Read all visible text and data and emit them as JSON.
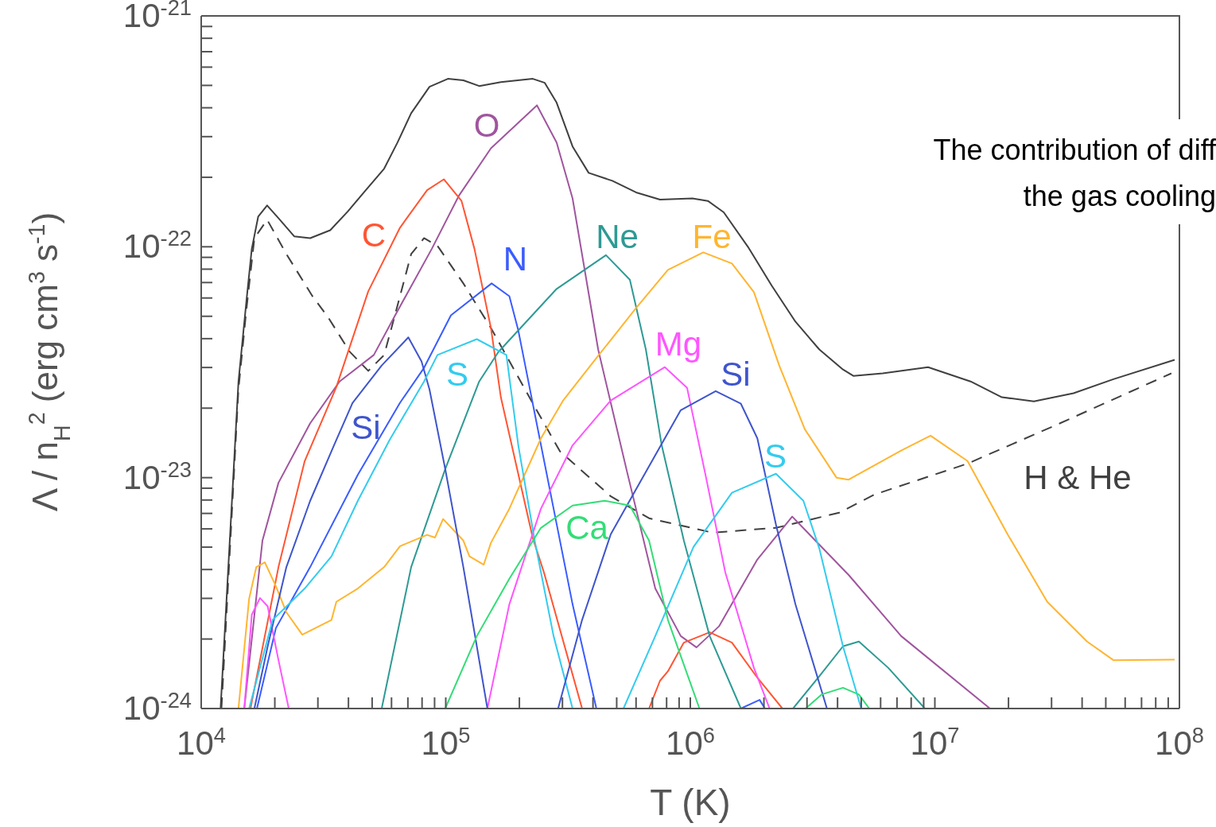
{
  "chart_data": {
    "type": "line",
    "xlabel": "T (K)",
    "ylabel": "Λ / n$_{H}$$^{2}$ (erg cm$^{3}$ s$^{-1}$)",
    "log": "xy",
    "xlim": [
      10000.0,
      100000000.0
    ],
    "ylim": [
      1e-24,
      1e-21
    ],
    "xticks": [
      {
        "value": 10000.0,
        "label": "10$^{4}$"
      },
      {
        "value": 20000.0,
        "label": null
      },
      {
        "value": 30000.0,
        "label": null
      },
      {
        "value": 40000.0,
        "label": null
      },
      {
        "value": 50000.0,
        "label": null
      },
      {
        "value": 60000.0,
        "label": null
      },
      {
        "value": 70000.0,
        "label": null
      },
      {
        "value": 80000.0,
        "label": null
      },
      {
        "value": 90000.0,
        "label": null
      },
      {
        "value": 100000.0,
        "label": "10$^{5}$"
      },
      {
        "value": 200000.0,
        "label": null
      },
      {
        "value": 300000.0,
        "label": null
      },
      {
        "value": 400000.0,
        "label": null
      },
      {
        "value": 500000.0,
        "label": null
      },
      {
        "value": 600000.0,
        "label": null
      },
      {
        "value": 700000.0,
        "label": null
      },
      {
        "value": 800000.0,
        "label": null
      },
      {
        "value": 900000.0,
        "label": null
      },
      {
        "value": 1000000.0,
        "label": "10$^{6}$"
      },
      {
        "value": 2000000.0,
        "label": null
      },
      {
        "value": 3000000.0,
        "label": null
      },
      {
        "value": 4000000.0,
        "label": null
      },
      {
        "value": 5000000.0,
        "label": null
      },
      {
        "value": 6000000.0,
        "label": null
      },
      {
        "value": 7000000.0,
        "label": null
      },
      {
        "value": 8000000.0,
        "label": null
      },
      {
        "value": 9000000.0,
        "label": null
      },
      {
        "value": 10000000.0,
        "label": "10$^{7}$"
      },
      {
        "value": 20000000.0,
        "label": null
      },
      {
        "value": 30000000.0,
        "label": null
      },
      {
        "value": 40000000.0,
        "label": null
      },
      {
        "value": 50000000.0,
        "label": null
      },
      {
        "value": 60000000.0,
        "label": null
      },
      {
        "value": 70000000.0,
        "label": null
      },
      {
        "value": 80000000.0,
        "label": null
      },
      {
        "value": 90000000.0,
        "label": null
      },
      {
        "value": 100000000.0,
        "label": "10$^{8}$"
      }
    ],
    "yticks": [
      {
        "value": 1e-24,
        "label": "10$^{-24}$"
      },
      {
        "value": 2e-24,
        "label": null
      },
      {
        "value": 3e-24,
        "label": null
      },
      {
        "value": 4e-24,
        "label": null
      },
      {
        "value": 5e-24,
        "label": null
      },
      {
        "value": 6e-24,
        "label": null
      },
      {
        "value": 7e-24,
        "label": null
      },
      {
        "value": 8e-24,
        "label": null
      },
      {
        "value": 9e-24,
        "label": null
      },
      {
        "value": 1e-23,
        "label": "10$^{-23}$"
      },
      {
        "value": 2e-23,
        "label": null
      },
      {
        "value": 3e-23,
        "label": null
      },
      {
        "value": 4e-23,
        "label": null
      },
      {
        "value": 5e-23,
        "label": null
      },
      {
        "value": 6e-23,
        "label": null
      },
      {
        "value": 7e-23,
        "label": null
      },
      {
        "value": 8e-23,
        "label": null
      },
      {
        "value": 9e-23,
        "label": null
      },
      {
        "value": 1e-22,
        "label": "10$^{-22}$"
      },
      {
        "value": 2e-22,
        "label": null
      },
      {
        "value": 3e-22,
        "label": null
      },
      {
        "value": 4e-22,
        "label": null
      },
      {
        "value": 5e-22,
        "label": null
      },
      {
        "value": 6e-22,
        "label": null
      },
      {
        "value": 7e-22,
        "label": null
      },
      {
        "value": 8e-22,
        "label": null
      },
      {
        "value": 9e-22,
        "label": null
      },
      {
        "value": 1e-21,
        "label": "10$^{-21}$"
      }
    ],
    "annotations": [
      "The contribution of diff",
      "the gas cooling"
    ],
    "series": [
      {
        "color": "#404040",
        "x": [
          12000.0,
          13200.0,
          14200.0,
          15300.0,
          16100.0,
          17100.0,
          18600.0,
          20700.0,
          24000.0,
          27900.0,
          33700.0,
          39700.0,
          47100.0,
          56000.0,
          63500.0,
          72200.0,
          85800.0,
          102000.0,
          118000.0,
          137000.0,
          168000.0,
          227000.0,
          254000.0,
          284000.0,
          330000.0,
          384000.0,
          480000.0,
          600000.0,
          752000.0,
          1020000.0,
          1180000.0,
          1370000.0,
          1720000.0,
          2150000.0,
          2690000.0,
          3370000.0,
          4210000.0,
          4640000.0,
          6120000.0,
          9380000.0,
          14000000.0,
          18800000.0,
          25400000.0,
          36900000.0,
          53700000.0,
          95600000.0
        ],
        "values": [
          1e-24,
          6.3e-24,
          2.6e-23,
          5.8e-23,
          9.8e-23,
          1.35e-22,
          1.51e-22,
          1.33e-22,
          1.11e-22,
          1.09e-22,
          1.18e-22,
          1.42e-22,
          1.76e-22,
          2.18e-22,
          2.83e-22,
          3.79e-22,
          4.93e-22,
          5.34e-22,
          5.26e-22,
          4.97e-22,
          5.17e-22,
          5.34e-22,
          5.13e-22,
          4.21e-22,
          2.72e-22,
          2.09e-22,
          1.93e-22,
          1.72e-22,
          1.6e-22,
          1.62e-22,
          1.58e-22,
          1.41e-22,
          1e-22,
          6.8e-23,
          4.74e-23,
          3.59e-23,
          2.94e-23,
          2.76e-23,
          2.83e-23,
          3.01e-23,
          2.61e-23,
          2.23e-23,
          2.14e-23,
          2.32e-23,
          2.67e-23,
          3.24e-23
        ]
      },
      {
        "name": "H & He",
        "color": "#404040",
        "line_style": "dashed",
        "x": [
          12100.0,
          14200.0,
          15300.0,
          16500.0,
          18600.0,
          22300.0,
          28500.0,
          33100.0,
          40500.0,
          48200.0,
          56000.0,
          65000.0,
          72200.0,
          81500.0,
          92500.0,
          118000.0,
          153000.0,
          231000.0,
          293000.0,
          473000.0,
          678000.0,
          1230000.0,
          2240000.0,
          4060000.0,
          5680000.0,
          13600000.0,
          32500000.0,
          92700000.0
        ],
        "values": [
          1e-24,
          2.41e-23,
          5.34e-23,
          1.09e-22,
          1.31e-22,
          9.3e-23,
          6.11e-23,
          4.93e-23,
          3.51e-23,
          2.9e-23,
          3.4e-23,
          6.11e-23,
          9.3e-23,
          1.09e-22,
          1.01e-22,
          6.94e-23,
          4.45e-23,
          2.03e-23,
          1.3e-23,
          8.3e-24,
          6.67e-24,
          5.78e-24,
          6.06e-24,
          7.05e-24,
          8.46e-24,
          1.15e-23,
          1.72e-23,
          2.83e-23
        ]
      },
      {
        "name": "O",
        "color": "#a0559e",
        "x": [
          15000.0,
          17800.0,
          20700.0,
          27900.0,
          36800.0,
          50800.0,
          62100.0,
          87700.0,
          113000.0,
          153000.0,
          236000.0,
          284000.0,
          330000.0,
          420000.0,
          550000.0,
          719000.0,
          914000.0,
          1060000.0,
          1310000.0,
          1880000.0,
          2610000.0,
          4440000.0,
          7280000.0,
          16800000.0
        ],
        "values": [
          1e-24,
          5.34e-24,
          9.5e-24,
          1.72e-23,
          2.61e-23,
          3.4e-23,
          5.05e-23,
          9.8e-23,
          1.66e-22,
          2.67e-22,
          4.1e-22,
          2.83e-22,
          1.62e-22,
          3.59e-23,
          1.07e-23,
          3.31e-24,
          2.06e-24,
          1.84e-24,
          2.27e-24,
          4.42e-24,
          6.78e-24,
          3.79e-24,
          2.06e-24,
          1e-24
        ]
      },
      {
        "name": "C",
        "color": "#ff5533",
        "x": [
          15900.0,
          20700.0,
          26500.0,
          35700.0,
          48200.0,
          65000.0,
          83900.0,
          98200.0,
          116000.0,
          131000.0,
          153000.0,
          168000.0,
          227000.0,
          252000.0,
          361000.0,
          500000.0,
          678000.0,
          752000.0,
          810000.0,
          941000.0,
          1200000.0,
          1480000.0,
          1880000.0,
          2380000.0
        ],
        "values": [
          1e-24,
          4.1e-24,
          1.18e-23,
          2.47e-23,
          6.41e-23,
          1.21e-22,
          1.76e-22,
          1.96e-22,
          1.58e-22,
          9.8e-23,
          4.45e-23,
          2.23e-23,
          5.47e-24,
          3.89e-24,
          1e-24,
          null,
          1e-24,
          1.32e-24,
          1.45e-24,
          1.93e-24,
          2.14e-24,
          1.93e-24,
          1.36e-24,
          1e-24
        ]
      },
      {
        "name": "N",
        "color": "#3a5cff",
        "x": [
          16900.0,
          20200.0,
          27900.0,
          43700.0,
          65000.0,
          81500.0,
          105000.0,
          154000.0,
          182000.0,
          198000.0,
          231000.0,
          276000.0,
          330000.0,
          413000.0,
          1200000.0,
          1610000.0,
          1920000.0,
          2020000.0
        ],
        "values": [
          1e-24,
          2.23e-24,
          4.1e-24,
          1.03e-23,
          2.11e-23,
          2.99e-23,
          5.05e-23,
          6.94e-23,
          6.11e-23,
          4.34e-23,
          1.9e-23,
          7.34e-24,
          2.83e-24,
          1e-24,
          null,
          1e-24,
          1.09e-24,
          1e-24
        ]
      },
      {
        "name": "Ne",
        "color": "#2e9a94",
        "x": [
          54700.0,
          72200.0,
          99500.0,
          137000.0,
          164000.0,
          284000.0,
          452000.0,
          566000.0,
          658000.0,
          764000.0,
          941000.0,
          1200000.0,
          1610000.0,
          2200000.0,
          2630000.0,
          3370000.0,
          4210000.0,
          4890000.0,
          6450000.0,
          9100000.0
        ],
        "values": [
          1e-24,
          4.1e-24,
          1.09e-23,
          2.61e-23,
          3.5e-23,
          6.57e-23,
          9.2e-23,
          7.2e-23,
          3.59e-23,
          1.38e-23,
          5.34e-24,
          2.06e-24,
          1e-24,
          null,
          1e-24,
          1.38e-24,
          1.86e-24,
          1.95e-24,
          1.5e-24,
          1e-24
        ]
      },
      {
        "name": "Fe",
        "color": "#ffb530",
        "x": [
          14200.0,
          15700.0,
          16800.0,
          18200.0,
          20200.0,
          22300.0,
          25900.0,
          34100.0,
          35700.0,
          43700.0,
          56000.0,
          65000.0,
          83900.0,
          90300.0,
          97500.0,
          118000.0,
          125000.0,
          143000.0,
          153000.0,
          182000.0,
          245000.0,
          302000.0,
          420000.0,
          600000.0,
          810000.0,
          1130000.0,
          1480000.0,
          1820000.0,
          2310000.0,
          2940000.0,
          3960000.0,
          4440000.0,
          7280000.0,
          9600000.0,
          13600000.0,
          19900000.0,
          28800000.0,
          41900000.0,
          53700000.0,
          95600000.0
        ],
        "values": [
          1e-24,
          2.99e-24,
          4.1e-24,
          4.3e-24,
          3.39e-24,
          2.61e-24,
          2.09e-24,
          2.42e-24,
          2.9e-24,
          3.31e-24,
          4.1e-24,
          5.05e-24,
          5.65e-24,
          5.5e-24,
          6.62e-24,
          5.34e-24,
          4.56e-24,
          4.2e-24,
          5.22e-24,
          7.34e-24,
          1.48e-23,
          2.16e-23,
          3.37e-23,
          5.43e-23,
          7.94e-23,
          9.46e-23,
          8.46e-23,
          6.36e-23,
          3.06e-23,
          1.62e-23,
          1e-23,
          9.8e-24,
          1.31e-23,
          1.52e-23,
          1.18e-23,
          5.65e-24,
          2.9e-24,
          1.95e-24,
          1.62e-24,
          1.63e-24
        ]
      },
      {
        "name": "Mg",
        "color": "#ff55ff",
        "x": [
          15000.0,
          16100.0,
          17400.0,
          18700.0,
          20700.0,
          22800.0,
          50000.0,
          148000.0,
          182000.0,
          245000.0,
          330000.0,
          473000.0,
          787000.0,
          970000.0,
          1160000.0,
          1390000.0,
          1820000.0,
          2110000.0
        ],
        "values": [
          1e-24,
          2.55e-24,
          3.01e-24,
          2.77e-24,
          1.62e-24,
          1e-24,
          null,
          1e-24,
          2.83e-24,
          7.34e-24,
          1.38e-23,
          2.16e-23,
          3.01e-23,
          2.45e-23,
          1e-23,
          3.89e-24,
          1.5e-24,
          1e-24
        ]
      },
      {
        "name": "Si",
        "color": "#3f55cc",
        "x": [
          16500.0,
          18700.0,
          22300.0,
          27900.0,
          34900.0,
          41600.0,
          54700.0,
          70300.0,
          79600.0,
          85800.0,
          99500.0,
          118000.0,
          148000.0
        ],
        "values": [
          1e-24,
          1.86e-24,
          4.1e-24,
          7.94e-24,
          1.38e-23,
          2.11e-23,
          3.06e-23,
          4.05e-23,
          3.19e-23,
          2.41e-23,
          1.09e-23,
          4.1e-24,
          1e-24
        ]
      },
      {
        "name": "S",
        "color": "#33ccee",
        "x": [
          15700.0,
          19600.0,
          26500.0,
          34100.0,
          43700.0,
          59000.0,
          81500.0,
          92500.0,
          134000.0,
          177000.0,
          198000.0,
          231000.0,
          276000.0,
          330000.0
        ],
        "values": [
          1e-24,
          2.42e-24,
          3.31e-24,
          4.56e-24,
          7.94e-24,
          1.46e-23,
          2.61e-23,
          3.4e-23,
          3.98e-23,
          3.4e-23,
          1.38e-23,
          5.34e-24,
          2.06e-24,
          1e-24
        ]
      },
      {
        "name": "Si",
        "color": "#3f55cc",
        "x": [
          288000.0,
          361000.0,
          473000.0,
          638000.0,
          914000.0,
          1270000.0,
          1610000.0,
          1880000.0,
          2240000.0,
          2690000.0,
          3620000.0
        ],
        "values": [
          1e-24,
          2.42e-24,
          5.69e-24,
          1e-23,
          1.96e-23,
          2.37e-23,
          2.09e-23,
          1.48e-23,
          6.26e-24,
          2.83e-24,
          1e-24
        ]
      },
      {
        "name": "S",
        "color": "#33ccee",
        "x": [
          533000.0,
          719000.0,
          1030000.0,
          1480000.0,
          2240000.0,
          2900000.0,
          3370000.0,
          4210000.0,
          5000000.0
        ],
        "values": [
          1e-24,
          2.06e-24,
          5.01e-24,
          8.6e-24,
          1.04e-23,
          7.94e-24,
          4.93e-24,
          1.86e-24,
          1e-24
        ]
      },
      {
        "name": "Ca",
        "color": "#33dd77",
        "x": [
          99500.0,
          134000.0,
          182000.0,
          245000.0,
          330000.0,
          446000.0,
          566000.0,
          678000.0,
          810000.0,
          1090000.0,
          2000000.0,
          2960000.0,
          3440000.0,
          4210000.0,
          4890000.0,
          5390000.0
        ],
        "values": [
          1e-24,
          2.06e-24,
          3.65e-24,
          6.06e-24,
          7.57e-24,
          7.94e-24,
          7.57e-24,
          5.34e-24,
          2.42e-24,
          1e-24,
          null,
          1e-24,
          1.15e-24,
          1.23e-24,
          1.15e-24,
          1e-24
        ]
      }
    ]
  }
}
